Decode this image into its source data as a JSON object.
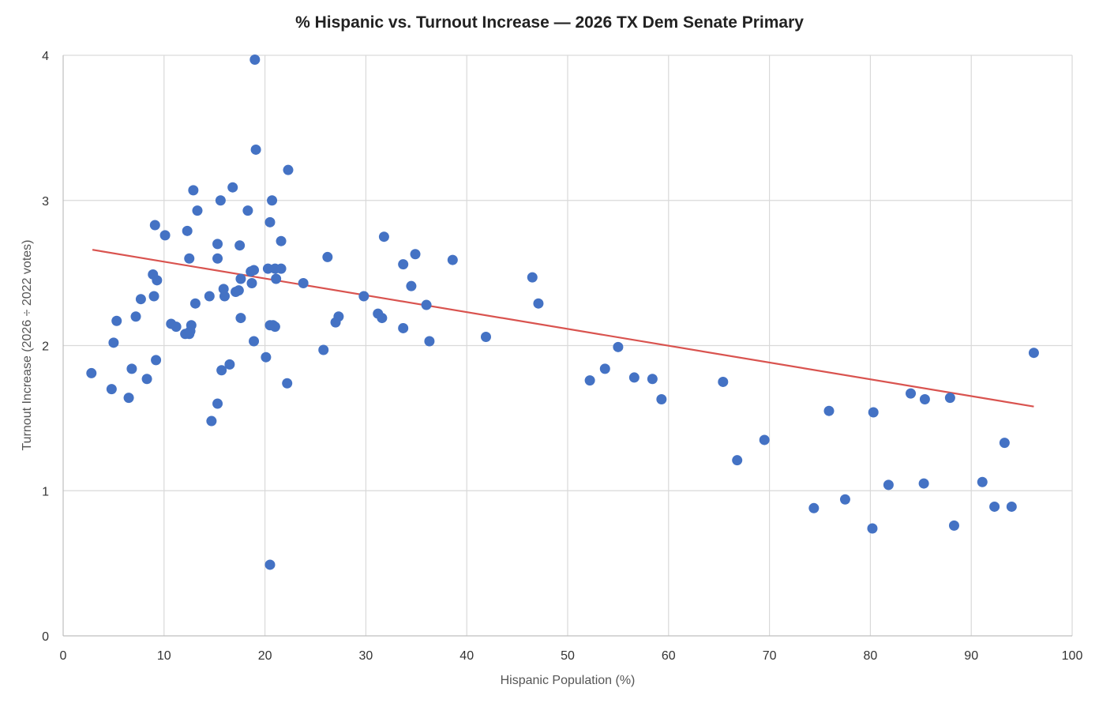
{
  "chart_data": {
    "type": "scatter",
    "title": "% Hispanic vs. Turnout Increase — 2026 TX Dem Senate Primary",
    "xlabel": "Hispanic Population (%)",
    "ylabel": "Turnout Increase (2026 ÷ 2022 votes)",
    "xlim": [
      0,
      100
    ],
    "ylim": [
      0,
      4
    ],
    "x_ticks": [
      "0",
      "10",
      "20",
      "30",
      "40",
      "50",
      "60",
      "70",
      "80",
      "90",
      "100"
    ],
    "y_ticks": [
      "0",
      "1",
      "2",
      "3",
      "4"
    ],
    "grid": true,
    "colors": {
      "points": "#4472c4",
      "trendline": "#d9534f"
    },
    "trendline": {
      "type": "linear",
      "x": [
        2.9,
        96.2
      ],
      "y": [
        2.66,
        1.58
      ]
    },
    "points": [
      [
        2.8,
        1.81
      ],
      [
        4.8,
        1.7
      ],
      [
        5.0,
        2.02
      ],
      [
        5.3,
        2.17
      ],
      [
        6.5,
        1.64
      ],
      [
        6.8,
        1.84
      ],
      [
        7.2,
        2.2
      ],
      [
        7.7,
        2.32
      ],
      [
        8.3,
        1.77
      ],
      [
        8.9,
        2.49
      ],
      [
        9.0,
        2.34
      ],
      [
        9.1,
        2.83
      ],
      [
        9.2,
        1.9
      ],
      [
        9.3,
        2.45
      ],
      [
        10.1,
        2.76
      ],
      [
        10.7,
        2.15
      ],
      [
        11.2,
        2.13
      ],
      [
        12.1,
        2.08
      ],
      [
        12.3,
        2.79
      ],
      [
        12.5,
        2.6
      ],
      [
        12.5,
        2.08
      ],
      [
        12.6,
        2.1
      ],
      [
        12.7,
        2.14
      ],
      [
        12.9,
        3.07
      ],
      [
        13.1,
        2.29
      ],
      [
        13.3,
        2.93
      ],
      [
        14.5,
        2.34
      ],
      [
        14.7,
        1.48
      ],
      [
        15.3,
        2.7
      ],
      [
        15.3,
        2.6
      ],
      [
        15.3,
        1.6
      ],
      [
        15.6,
        3.0
      ],
      [
        15.7,
        1.83
      ],
      [
        15.9,
        2.39
      ],
      [
        16.0,
        2.34
      ],
      [
        16.5,
        1.87
      ],
      [
        16.8,
        3.09
      ],
      [
        17.1,
        2.37
      ],
      [
        17.4,
        2.38
      ],
      [
        17.5,
        2.69
      ],
      [
        17.6,
        2.19
      ],
      [
        17.6,
        2.46
      ],
      [
        18.3,
        2.93
      ],
      [
        18.6,
        2.51
      ],
      [
        18.7,
        2.43
      ],
      [
        18.9,
        2.52
      ],
      [
        18.9,
        2.03
      ],
      [
        19.0,
        3.97
      ],
      [
        19.1,
        3.35
      ],
      [
        20.1,
        1.92
      ],
      [
        20.3,
        2.53
      ],
      [
        20.5,
        2.85
      ],
      [
        20.5,
        2.14
      ],
      [
        20.5,
        0.49
      ],
      [
        20.7,
        3.0
      ],
      [
        20.8,
        2.14
      ],
      [
        21.0,
        2.13
      ],
      [
        21.0,
        2.53
      ],
      [
        21.1,
        2.46
      ],
      [
        21.6,
        2.53
      ],
      [
        21.6,
        2.72
      ],
      [
        22.2,
        1.74
      ],
      [
        22.3,
        3.21
      ],
      [
        23.8,
        2.43
      ],
      [
        25.8,
        1.97
      ],
      [
        26.2,
        2.61
      ],
      [
        27.0,
        2.16
      ],
      [
        27.3,
        2.2
      ],
      [
        29.8,
        2.34
      ],
      [
        31.2,
        2.22
      ],
      [
        31.6,
        2.19
      ],
      [
        31.8,
        2.75
      ],
      [
        33.7,
        2.12
      ],
      [
        33.7,
        2.56
      ],
      [
        34.5,
        2.41
      ],
      [
        34.9,
        2.63
      ],
      [
        36.0,
        2.28
      ],
      [
        36.3,
        2.03
      ],
      [
        38.6,
        2.59
      ],
      [
        41.9,
        2.06
      ],
      [
        46.5,
        2.47
      ],
      [
        47.1,
        2.29
      ],
      [
        52.2,
        1.76
      ],
      [
        53.7,
        1.84
      ],
      [
        55.0,
        1.99
      ],
      [
        56.6,
        1.78
      ],
      [
        58.4,
        1.77
      ],
      [
        59.3,
        1.63
      ],
      [
        65.4,
        1.75
      ],
      [
        66.8,
        1.21
      ],
      [
        69.5,
        1.35
      ],
      [
        74.4,
        0.88
      ],
      [
        75.9,
        1.55
      ],
      [
        77.5,
        0.94
      ],
      [
        80.2,
        0.74
      ],
      [
        80.3,
        1.54
      ],
      [
        81.8,
        1.04
      ],
      [
        84.0,
        1.67
      ],
      [
        85.3,
        1.05
      ],
      [
        85.4,
        1.63
      ],
      [
        87.9,
        1.64
      ],
      [
        88.3,
        0.76
      ],
      [
        91.1,
        1.06
      ],
      [
        92.3,
        0.89
      ],
      [
        93.3,
        1.33
      ],
      [
        94.0,
        0.89
      ],
      [
        96.2,
        1.95
      ]
    ]
  }
}
